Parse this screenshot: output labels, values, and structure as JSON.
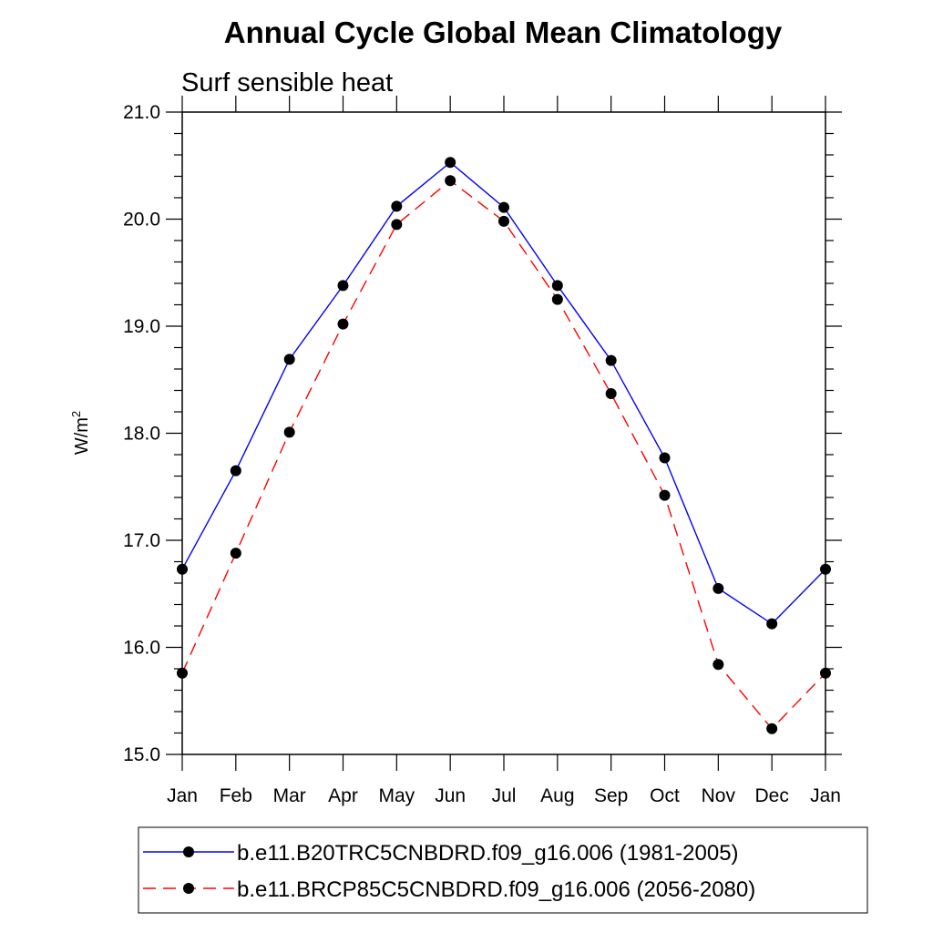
{
  "chart_data": {
    "type": "line",
    "title": "Annual Cycle Global Mean Climatology",
    "subtitle": "Surf sensible heat",
    "ylabel_base": "W/m",
    "ylabel_sup": "2",
    "categories": [
      "Jan",
      "Feb",
      "Mar",
      "Apr",
      "May",
      "Jun",
      "Jul",
      "Aug",
      "Sep",
      "Oct",
      "Nov",
      "Dec",
      "Jan"
    ],
    "ylim": [
      15.0,
      21.0
    ],
    "yticks": [
      "15.0",
      "16.0",
      "17.0",
      "18.0",
      "19.0",
      "20.0",
      "21.0"
    ],
    "grid": false,
    "legend_position": "bottom",
    "series": [
      {
        "name": "b.e11.B20TRC5CNBDRD.f09_g16.006 (1981-2005)",
        "color": "#0000ff",
        "dash": "solid",
        "values": [
          16.73,
          17.65,
          18.69,
          19.38,
          20.12,
          20.53,
          20.11,
          19.38,
          18.68,
          17.77,
          16.55,
          16.22,
          16.73
        ]
      },
      {
        "name": "b.e11.BRCP85C5CNBDRD.f09_g16.006 (2056-2080)",
        "color": "#ff0000",
        "dash": "dashed",
        "values": [
          15.76,
          16.88,
          18.01,
          19.02,
          19.95,
          20.36,
          19.98,
          19.25,
          18.37,
          17.42,
          15.84,
          15.24,
          15.76
        ]
      }
    ]
  }
}
